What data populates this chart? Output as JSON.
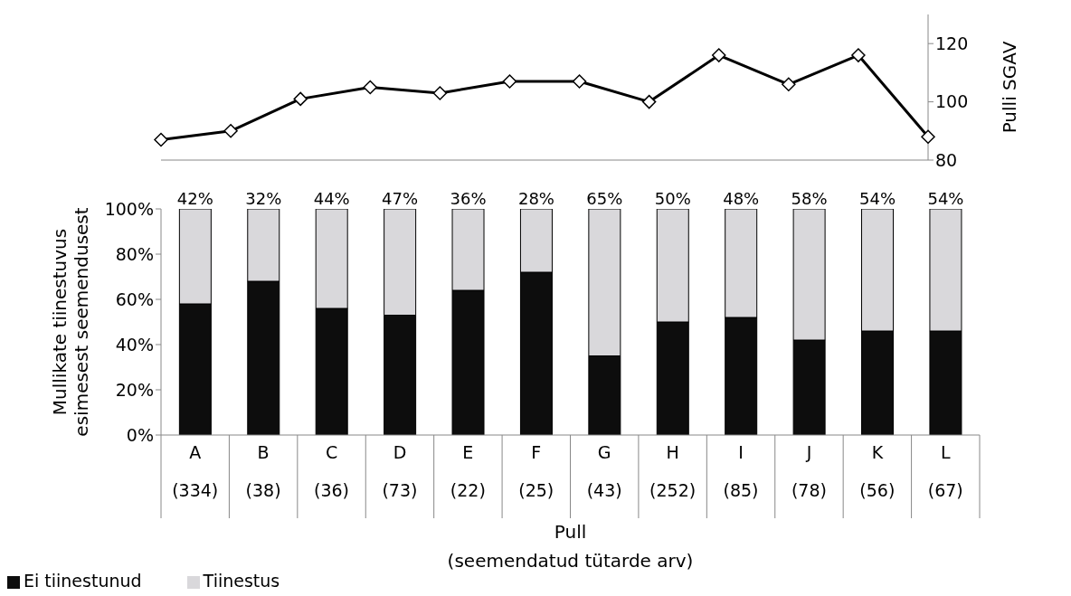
{
  "chart_data": [
    {
      "type": "line",
      "categories": [
        null,
        null,
        null,
        null,
        null,
        null,
        null,
        null,
        null,
        null,
        null,
        null
      ],
      "series": [
        {
          "color": "#000000",
          "values": [
            87,
            90,
            101,
            105,
            103,
            107,
            107,
            100,
            116,
            106,
            116,
            88
          ]
        }
      ],
      "ylim": [
        80,
        130
      ],
      "yticks": [
        80,
        100,
        120
      ],
      "ylabel": "Pulli SGAV",
      "marker": "diamond"
    },
    {
      "type": "bar",
      "stacked": true,
      "categories": [
        "A\n(334)",
        "B\n(38)",
        "C\n(36)",
        "D\n(73)",
        "E\n(22)",
        "F\n(25)",
        "G\n(43)",
        "H\n(252)",
        "I\n(85)",
        "J\n(78)",
        "K\n(56)",
        "L\n(67)"
      ],
      "series": [
        {
          "name": "Ei tiinestunud",
          "color": "#0d0d0d",
          "values": [
            58,
            68,
            56,
            53,
            64,
            72,
            35,
            50,
            52,
            42,
            46,
            46
          ]
        },
        {
          "name": "Tiinestus",
          "color": "#d9d8db",
          "values": [
            42,
            32,
            44,
            47,
            36,
            28,
            65,
            50,
            48,
            58,
            54,
            54
          ],
          "value_labels": [
            "42%",
            "32%",
            "44%",
            "47%",
            "36%",
            "28%",
            "65%",
            "50%",
            "48%",
            "58%",
            "54%",
            "54%"
          ]
        }
      ],
      "ylim": [
        0,
        100
      ],
      "yticks": [
        {
          "value": 0,
          "label": "0%"
        },
        {
          "value": 20,
          "label": "20%"
        },
        {
          "value": 40,
          "label": "40%"
        },
        {
          "value": 60,
          "label": "60%"
        },
        {
          "value": 80,
          "label": "80%"
        },
        {
          "value": 100,
          "label": "100%"
        }
      ],
      "ylabel": "Mullikate tiinestuvus\nesimesest seemendusest",
      "xlabel": "Pull\n(seemendatud tütarde arv)",
      "legend": "bottom left"
    }
  ]
}
